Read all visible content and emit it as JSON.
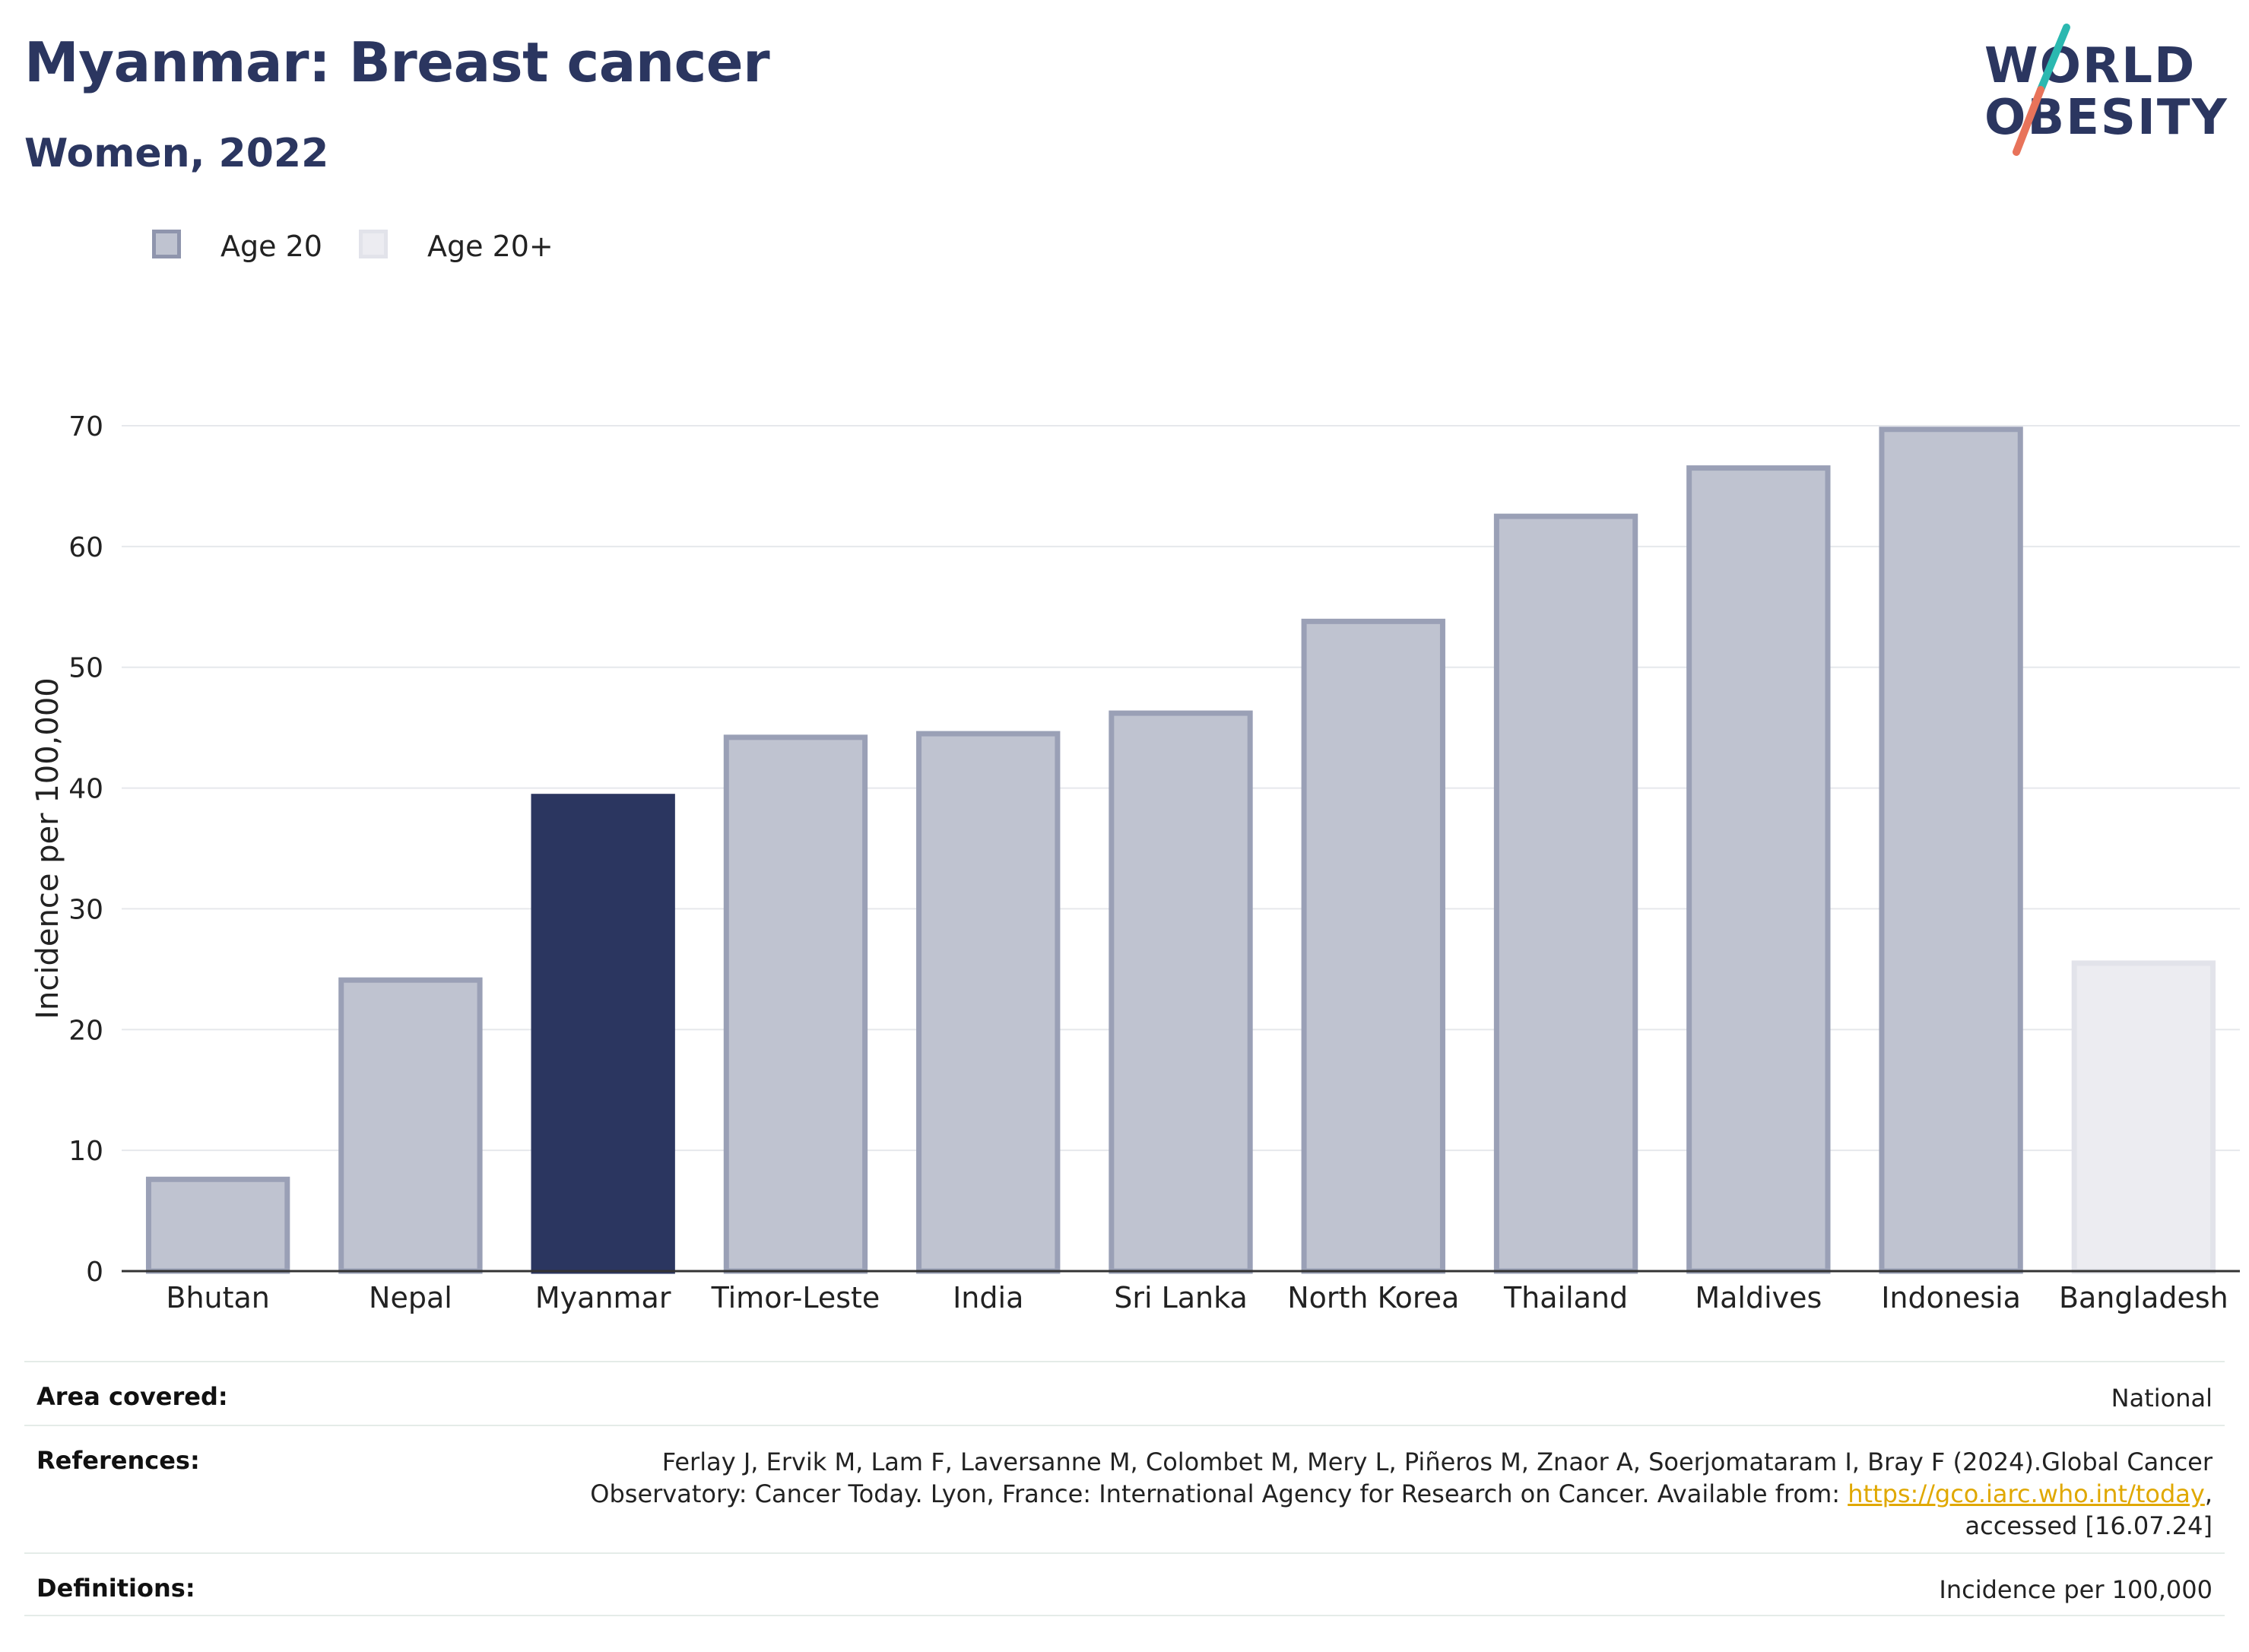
{
  "header": {
    "title": "Myanmar: Breast cancer",
    "subtitle": "Women, 2022"
  },
  "logo": {
    "line1": "WORLD",
    "line2": "OBESITY",
    "colors": {
      "text": "#2b3660",
      "slash_top": "#2bb8b0",
      "slash_bottom": "#e8735a"
    }
  },
  "legend": [
    {
      "label": "Age 20",
      "color": "#bfc3d0",
      "border": "#8f95ad"
    },
    {
      "label": "Age 20+",
      "color": "#ececf1",
      "border": "#e2e3ea"
    }
  ],
  "chart_data": {
    "type": "bar",
    "ylabel": "Incidence per 100,000",
    "xlabel": "",
    "ylim": [
      0,
      70
    ],
    "yticks": [
      0,
      10,
      20,
      30,
      40,
      50,
      60,
      70
    ],
    "grid": true,
    "legend_position": "top-left",
    "categories": [
      "Bhutan",
      "Nepal",
      "Myanmar",
      "Timor-Leste",
      "India",
      "Sri Lanka",
      "North Korea",
      "Thailand",
      "Maldives",
      "Indonesia",
      "Bangladesh"
    ],
    "values": [
      7.6,
      24.1,
      39.3,
      44.2,
      44.5,
      46.2,
      53.8,
      62.5,
      66.5,
      69.7,
      25.5
    ],
    "groups": [
      "Age 20",
      "Age 20",
      "highlight",
      "Age 20",
      "Age 20",
      "Age 20",
      "Age 20",
      "Age 20",
      "Age 20",
      "Age 20",
      "Age 20+"
    ],
    "colors": {
      "Age 20": {
        "fill": "#bfc3d0",
        "stroke": "#9aa0b6"
      },
      "Age 20+": {
        "fill": "#ececf1",
        "stroke": "#e2e3ea"
      },
      "highlight": {
        "fill": "#2b3660",
        "stroke": "#2b3660"
      }
    }
  },
  "meta": {
    "area_key": "Area covered:",
    "area_val": "National",
    "refs_key": "References:",
    "refs_line1": "Ferlay J, Ervik M, Lam F, Laversanne M, Colombet M, Mery L, Piñeros M, Znaor A, Soerjomataram I, Bray F (2024).Global Cancer",
    "refs_line2_pre": "Observatory: Cancer Today. Lyon, France: International Agency for Research on Cancer. Available from: ",
    "refs_link": "https://gco.iarc.who.int/today",
    "refs_line2_post": ",",
    "refs_line3": "accessed [16.07.24]",
    "defs_key": "Definitions:",
    "defs_val": "Incidence per 100,000",
    "link_color": "#e0a800"
  }
}
